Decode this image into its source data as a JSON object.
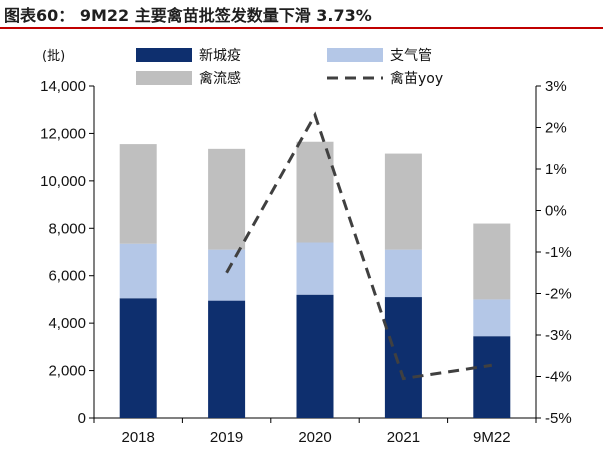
{
  "title": "图表60：  9M22 主要禽苗批签发数量下滑 3.73%",
  "chart_data": {
    "type": "bar",
    "stacked": true,
    "categories": [
      "2018",
      "2019",
      "2020",
      "2021",
      "9M22"
    ],
    "y_unit": "(批)",
    "ylim": [
      0,
      14000
    ],
    "yticks": [
      "0",
      "2,000",
      "4,000",
      "6,000",
      "8,000",
      "10,000",
      "12,000",
      "14,000"
    ],
    "y2lim": [
      -5,
      3
    ],
    "y2ticks": [
      "-5%",
      "-4%",
      "-3%",
      "-2%",
      "-1%",
      "0%",
      "1%",
      "2%",
      "3%"
    ],
    "series": [
      {
        "name": "新城疫",
        "kind": "bar",
        "color": "#0e2f6e",
        "values": [
          5050,
          4950,
          5200,
          5100,
          3450
        ]
      },
      {
        "name": "支气管",
        "kind": "bar",
        "color": "#b4c7e7",
        "values": [
          2300,
          2150,
          2200,
          2000,
          1550
        ]
      },
      {
        "name": "禽流感",
        "kind": "bar",
        "color": "#bfbfbf",
        "values": [
          4200,
          4250,
          4250,
          4050,
          3200
        ]
      },
      {
        "name": "禽苗yoy",
        "kind": "line",
        "axis": "right",
        "style": "dashed",
        "color": "#404040",
        "x": [
          "2019",
          "2020",
          "2021",
          "9M22"
        ],
        "values": [
          -1.5,
          2.3,
          -4.05,
          -3.73
        ]
      }
    ],
    "legend_position": "top",
    "grid": false
  }
}
